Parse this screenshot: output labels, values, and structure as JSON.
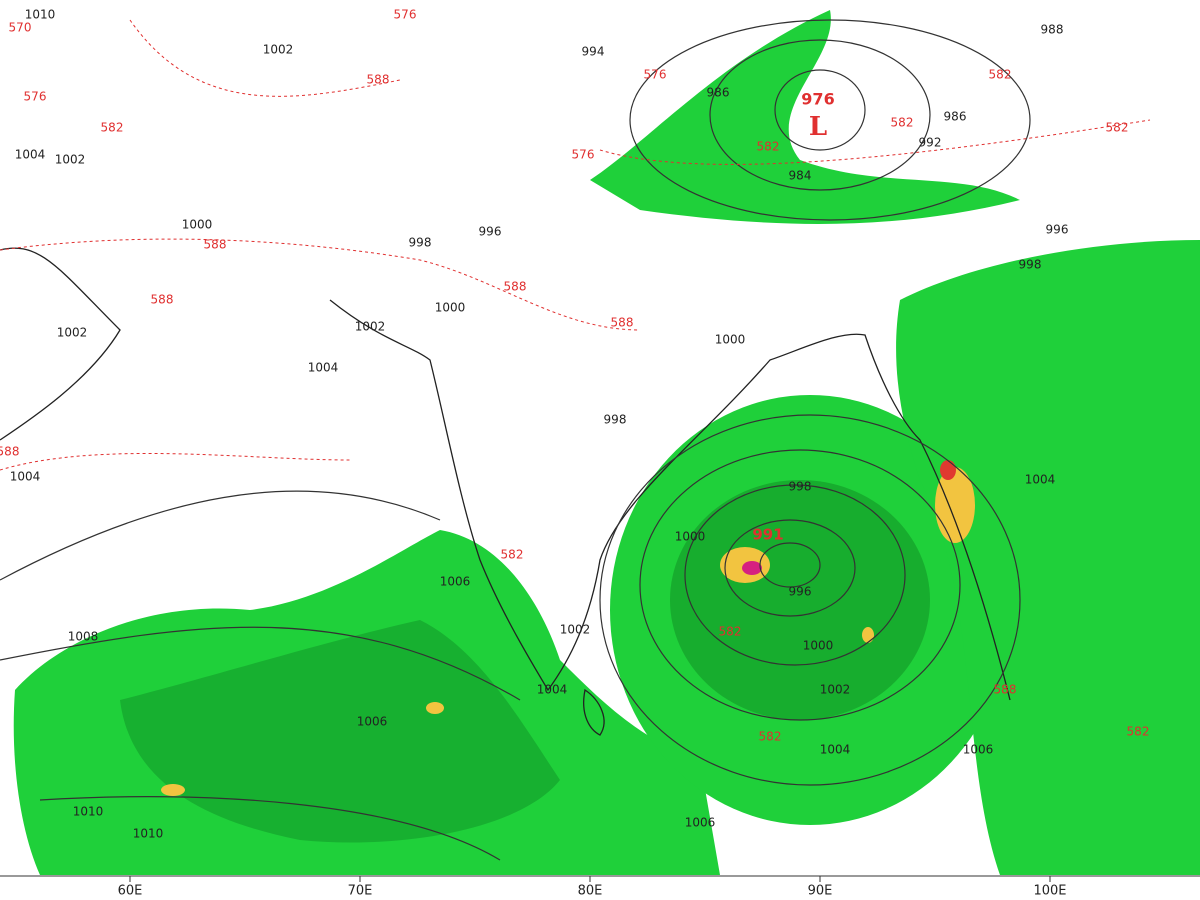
{
  "map": {
    "longitude_labels": [
      "60E",
      "70E",
      "80E",
      "90E",
      "100E"
    ],
    "isobar_labels": [
      "1010",
      "1002",
      "1004",
      "1002",
      "1000",
      "998",
      "996",
      "1000",
      "1002",
      "1002",
      "1004",
      "1000",
      "998",
      "1004",
      "994",
      "986",
      "988",
      "986",
      "992",
      "996",
      "998",
      "996",
      "998",
      "1000",
      "1000",
      "1002",
      "1004",
      "1006",
      "1002",
      "1004",
      "1006",
      "1008",
      "1010",
      "1010",
      "1006",
      "1006",
      "1004",
      "984"
    ],
    "height_labels": [
      "576",
      "570",
      "576",
      "582",
      "588",
      "588",
      "588",
      "588",
      "588",
      "588",
      "576",
      "576",
      "582",
      "582",
      "582",
      "582",
      "582",
      "582",
      "582",
      "588",
      "582"
    ],
    "low_center": {
      "pressure": "976",
      "symbol": "L"
    },
    "cyclone_center_pressure": "991"
  }
}
